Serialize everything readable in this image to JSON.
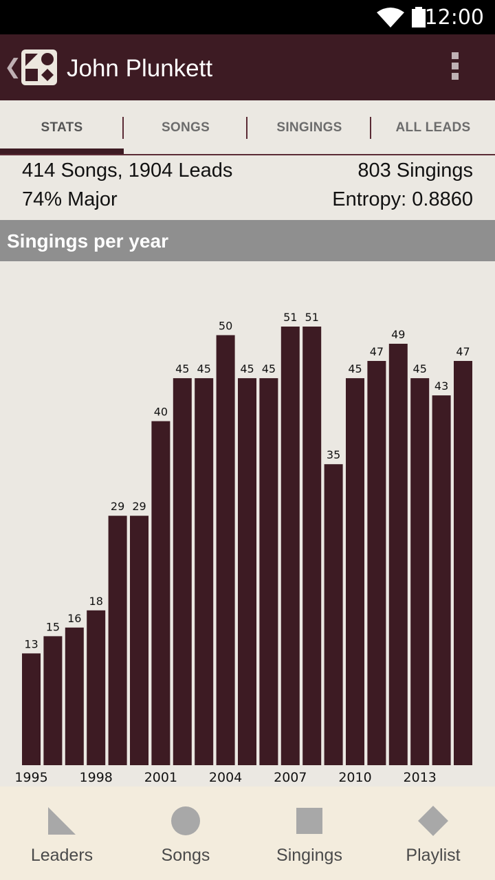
{
  "status_bar": {
    "time": "12:00"
  },
  "app_bar": {
    "title": "John Plunkett"
  },
  "tabs": [
    {
      "label": "STATS"
    },
    {
      "label": "SONGS"
    },
    {
      "label": "SINGINGS"
    },
    {
      "label": "ALL LEADS"
    }
  ],
  "stats": {
    "songs_leads": "414 Songs, 1904 Leads",
    "singings": "803 Singings",
    "major": "74% Major",
    "entropy": "Entropy: 0.8860"
  },
  "section": {
    "title": "Singings per year"
  },
  "chart_data": {
    "type": "bar",
    "title": "Singings per year",
    "categories": [
      "1995",
      "1996",
      "1997",
      "1998",
      "1999",
      "2000",
      "2001",
      "2002",
      "2003",
      "2004",
      "2005",
      "2006",
      "2007",
      "2008",
      "2009",
      "2010",
      "2011",
      "2012",
      "2013",
      "2014",
      "2015"
    ],
    "values": [
      13,
      15,
      16,
      18,
      29,
      29,
      40,
      45,
      45,
      50,
      45,
      45,
      51,
      51,
      35,
      45,
      47,
      49,
      45,
      43,
      47
    ],
    "tick_labels": [
      "1995",
      "1998",
      "2001",
      "2004",
      "2007",
      "2010",
      "2013"
    ],
    "ylim": [
      0,
      51
    ],
    "grid": false,
    "bar_color": "#3d1b23"
  },
  "bottom_nav": [
    {
      "label": "Leaders",
      "icon": "triangle-icon"
    },
    {
      "label": "Songs",
      "icon": "circle-icon"
    },
    {
      "label": "Singings",
      "icon": "square-icon"
    },
    {
      "label": "Playlist",
      "icon": "diamond-icon"
    }
  ],
  "colors": {
    "primary": "#3d1b23",
    "background": "#ebe8e2",
    "header_gray": "#8f8f8f",
    "nav_bg": "#f3ecdd",
    "icon_gray": "#a8a8a8"
  }
}
